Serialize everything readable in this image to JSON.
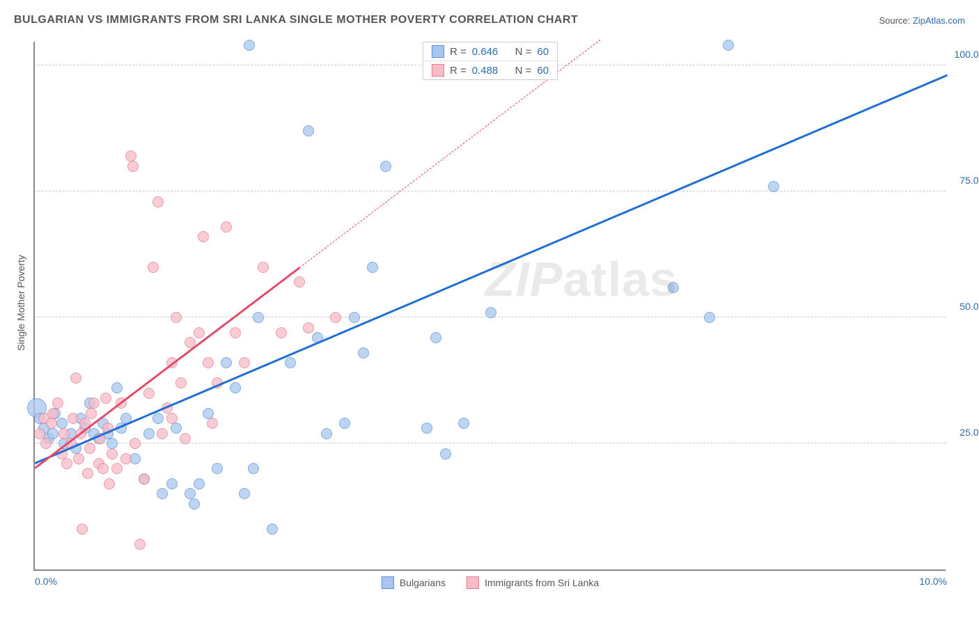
{
  "title": "BULGARIAN VS IMMIGRANTS FROM SRI LANKA SINGLE MOTHER POVERTY CORRELATION CHART",
  "source_prefix": "Source: ",
  "source_link": "ZipAtlas.com",
  "watermark_a": "ZIP",
  "watermark_b": "atlas",
  "chart": {
    "type": "scatter",
    "ylabel": "Single Mother Poverty",
    "xlim": [
      0,
      10
    ],
    "ylim": [
      0,
      105
    ],
    "xticks": [
      {
        "v": 0,
        "label": "0.0%"
      },
      {
        "v": 10,
        "label": "10.0%"
      }
    ],
    "yticks": [
      {
        "v": 25,
        "label": "25.0%"
      },
      {
        "v": 50,
        "label": "50.0%"
      },
      {
        "v": 75,
        "label": "75.0%"
      },
      {
        "v": 100,
        "label": "100.0%"
      }
    ],
    "gridlines_y": [
      25,
      50,
      75,
      100
    ],
    "background_color": "#ffffff",
    "grid_color": "#cccccc",
    "axis_color": "#888888",
    "tick_label_color": "#2b6cb0",
    "title_color": "#555555",
    "title_fontsize": 16,
    "label_fontsize": 14,
    "marker_radius": 8,
    "marker_radius_large": 14,
    "marker_stroke_width": 1.5,
    "marker_fill_opacity": 0.35,
    "series": [
      {
        "name": "Bulgarians",
        "fill": "#a8c7f0",
        "stroke": "#5b8fd6",
        "R": "0.646",
        "N": "60",
        "trend": {
          "x1": 0,
          "y1": 21,
          "x2": 10,
          "y2": 98,
          "color": "#1f6fd4",
          "width": 2.5,
          "solid_to_x": 10
        },
        "points": [
          {
            "x": 0.02,
            "y": 32,
            "r": 14
          },
          {
            "x": 0.05,
            "y": 30
          },
          {
            "x": 0.1,
            "y": 28
          },
          {
            "x": 0.15,
            "y": 26
          },
          {
            "x": 0.2,
            "y": 27
          },
          {
            "x": 0.22,
            "y": 31
          },
          {
            "x": 0.3,
            "y": 29
          },
          {
            "x": 0.32,
            "y": 25
          },
          {
            "x": 0.4,
            "y": 27
          },
          {
            "x": 0.45,
            "y": 24
          },
          {
            "x": 0.5,
            "y": 30
          },
          {
            "x": 0.55,
            "y": 28
          },
          {
            "x": 0.6,
            "y": 33
          },
          {
            "x": 0.65,
            "y": 27
          },
          {
            "x": 0.7,
            "y": 26
          },
          {
            "x": 0.75,
            "y": 29
          },
          {
            "x": 0.8,
            "y": 27
          },
          {
            "x": 0.85,
            "y": 25
          },
          {
            "x": 0.9,
            "y": 36
          },
          {
            "x": 0.95,
            "y": 28
          },
          {
            "x": 1.0,
            "y": 30
          },
          {
            "x": 1.1,
            "y": 22
          },
          {
            "x": 1.2,
            "y": 18
          },
          {
            "x": 1.25,
            "y": 27
          },
          {
            "x": 1.35,
            "y": 30
          },
          {
            "x": 1.4,
            "y": 15
          },
          {
            "x": 1.5,
            "y": 17
          },
          {
            "x": 1.55,
            "y": 28
          },
          {
            "x": 1.7,
            "y": 15
          },
          {
            "x": 1.75,
            "y": 13
          },
          {
            "x": 1.8,
            "y": 17
          },
          {
            "x": 1.9,
            "y": 31
          },
          {
            "x": 2.0,
            "y": 20
          },
          {
            "x": 2.1,
            "y": 41
          },
          {
            "x": 2.2,
            "y": 36
          },
          {
            "x": 2.3,
            "y": 15
          },
          {
            "x": 2.35,
            "y": 104
          },
          {
            "x": 2.4,
            "y": 20
          },
          {
            "x": 2.45,
            "y": 50
          },
          {
            "x": 2.6,
            "y": 8
          },
          {
            "x": 2.8,
            "y": 41
          },
          {
            "x": 3.0,
            "y": 87
          },
          {
            "x": 3.1,
            "y": 46
          },
          {
            "x": 3.2,
            "y": 27
          },
          {
            "x": 3.4,
            "y": 29
          },
          {
            "x": 3.5,
            "y": 50
          },
          {
            "x": 3.6,
            "y": 43
          },
          {
            "x": 3.7,
            "y": 60
          },
          {
            "x": 3.85,
            "y": 80
          },
          {
            "x": 4.3,
            "y": 28
          },
          {
            "x": 4.4,
            "y": 46
          },
          {
            "x": 4.5,
            "y": 23
          },
          {
            "x": 4.7,
            "y": 29
          },
          {
            "x": 5.0,
            "y": 51
          },
          {
            "x": 7.0,
            "y": 56
          },
          {
            "x": 7.4,
            "y": 50
          },
          {
            "x": 7.6,
            "y": 104
          },
          {
            "x": 8.1,
            "y": 76
          }
        ]
      },
      {
        "name": "Immigrants from Sri Lanka",
        "fill": "#f7bcc7",
        "stroke": "#e77a90",
        "R": "0.488",
        "N": "60",
        "trend": {
          "x1": 0,
          "y1": 20,
          "x2": 6.2,
          "y2": 105,
          "color": "#e24b6b",
          "width": 2.5,
          "solid_to_x": 2.9
        },
        "points": [
          {
            "x": 0.05,
            "y": 27
          },
          {
            "x": 0.1,
            "y": 30
          },
          {
            "x": 0.12,
            "y": 25
          },
          {
            "x": 0.18,
            "y": 29
          },
          {
            "x": 0.2,
            "y": 31
          },
          {
            "x": 0.25,
            "y": 33
          },
          {
            "x": 0.3,
            "y": 23
          },
          {
            "x": 0.32,
            "y": 27
          },
          {
            "x": 0.35,
            "y": 21
          },
          {
            "x": 0.4,
            "y": 25
          },
          {
            "x": 0.42,
            "y": 30
          },
          {
            "x": 0.45,
            "y": 38
          },
          {
            "x": 0.48,
            "y": 22
          },
          {
            "x": 0.5,
            "y": 27
          },
          {
            "x": 0.52,
            "y": 8
          },
          {
            "x": 0.55,
            "y": 29
          },
          {
            "x": 0.58,
            "y": 19
          },
          {
            "x": 0.6,
            "y": 24
          },
          {
            "x": 0.62,
            "y": 31
          },
          {
            "x": 0.65,
            "y": 33
          },
          {
            "x": 0.7,
            "y": 21
          },
          {
            "x": 0.72,
            "y": 26
          },
          {
            "x": 0.75,
            "y": 20
          },
          {
            "x": 0.78,
            "y": 34
          },
          {
            "x": 0.8,
            "y": 28
          },
          {
            "x": 0.82,
            "y": 17
          },
          {
            "x": 0.85,
            "y": 23
          },
          {
            "x": 0.9,
            "y": 20
          },
          {
            "x": 0.95,
            "y": 33
          },
          {
            "x": 1.0,
            "y": 22
          },
          {
            "x": 1.05,
            "y": 82
          },
          {
            "x": 1.08,
            "y": 80
          },
          {
            "x": 1.1,
            "y": 25
          },
          {
            "x": 1.15,
            "y": 5
          },
          {
            "x": 1.2,
            "y": 18
          },
          {
            "x": 1.25,
            "y": 35
          },
          {
            "x": 1.3,
            "y": 60
          },
          {
            "x": 1.35,
            "y": 73
          },
          {
            "x": 1.4,
            "y": 27
          },
          {
            "x": 1.45,
            "y": 32
          },
          {
            "x": 1.5,
            "y": 30
          },
          {
            "x": 1.5,
            "y": 41
          },
          {
            "x": 1.55,
            "y": 50
          },
          {
            "x": 1.6,
            "y": 37
          },
          {
            "x": 1.65,
            "y": 26
          },
          {
            "x": 1.7,
            "y": 45
          },
          {
            "x": 1.8,
            "y": 47
          },
          {
            "x": 1.85,
            "y": 66
          },
          {
            "x": 1.9,
            "y": 41
          },
          {
            "x": 1.95,
            "y": 29
          },
          {
            "x": 2.0,
            "y": 37
          },
          {
            "x": 2.1,
            "y": 68
          },
          {
            "x": 2.2,
            "y": 47
          },
          {
            "x": 2.3,
            "y": 41
          },
          {
            "x": 2.5,
            "y": 60
          },
          {
            "x": 2.7,
            "y": 47
          },
          {
            "x": 2.9,
            "y": 57
          },
          {
            "x": 3.0,
            "y": 48
          },
          {
            "x": 3.3,
            "y": 50
          }
        ]
      }
    ],
    "stat_legend_labels": {
      "r": "R =",
      "n": "N ="
    },
    "bottom_legend": [
      "Bulgarians",
      "Immigrants from Sri Lanka"
    ]
  }
}
